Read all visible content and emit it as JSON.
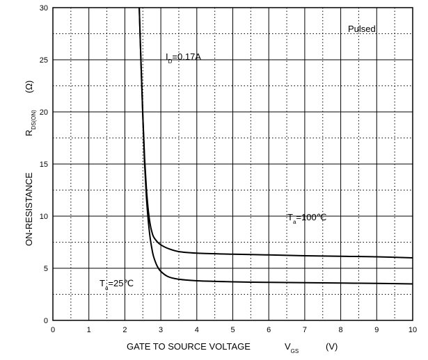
{
  "chart_data": {
    "type": "line",
    "xlabel": "GATE TO SOURCE VOLTAGE",
    "xlabel_symbol": "V",
    "xlabel_symbol_sub": "GS",
    "xlabel_unit": "(V)",
    "ylabel": "ON-RESISTANCE",
    "ylabel_symbol": "R",
    "ylabel_symbol_sub": "DS(ON)",
    "ylabel_unit": "(Ω)",
    "xlim": [
      0,
      10
    ],
    "ylim": [
      0,
      30
    ],
    "x_ticks": [
      "0",
      "1",
      "2",
      "3",
      "4",
      "5",
      "6",
      "7",
      "8",
      "9",
      "10"
    ],
    "y_ticks": [
      "0",
      "5",
      "10",
      "15",
      "20",
      "25",
      "30"
    ],
    "grid": true,
    "annotations": {
      "pulsed": "Pulsed",
      "id_label": "I",
      "id_sub": "D",
      "id_value": "=0.17A",
      "ta100_label": "T",
      "ta100_sub": "a",
      "ta100_value": "=100℃",
      "ta25_label": "T",
      "ta25_sub": "a",
      "ta25_value": "=25℃"
    },
    "series": [
      {
        "name": "Ta=100℃",
        "x": [
          2.4,
          2.45,
          2.5,
          2.55,
          2.6,
          2.65,
          2.7,
          2.75,
          2.8,
          2.9,
          3.0,
          3.2,
          3.5,
          4.0,
          5.0,
          6.0,
          7.0,
          8.0,
          9.0,
          10.0
        ],
        "y": [
          30,
          24.5,
          19.5,
          15.5,
          12.6,
          10.6,
          9.3,
          8.5,
          8.0,
          7.55,
          7.25,
          6.9,
          6.6,
          6.45,
          6.35,
          6.28,
          6.2,
          6.15,
          6.1,
          6.0
        ]
      },
      {
        "name": "Ta=25℃",
        "x": [
          2.4,
          2.45,
          2.5,
          2.55,
          2.6,
          2.65,
          2.7,
          2.75,
          2.8,
          2.9,
          3.0,
          3.2,
          3.5,
          4.0,
          5.0,
          6.0,
          7.0,
          8.0,
          9.0,
          10.0
        ],
        "y": [
          30,
          24.5,
          19.5,
          15.0,
          11.8,
          9.6,
          8.0,
          6.9,
          6.1,
          5.2,
          4.7,
          4.2,
          3.95,
          3.8,
          3.7,
          3.65,
          3.62,
          3.58,
          3.55,
          3.5
        ]
      }
    ]
  }
}
